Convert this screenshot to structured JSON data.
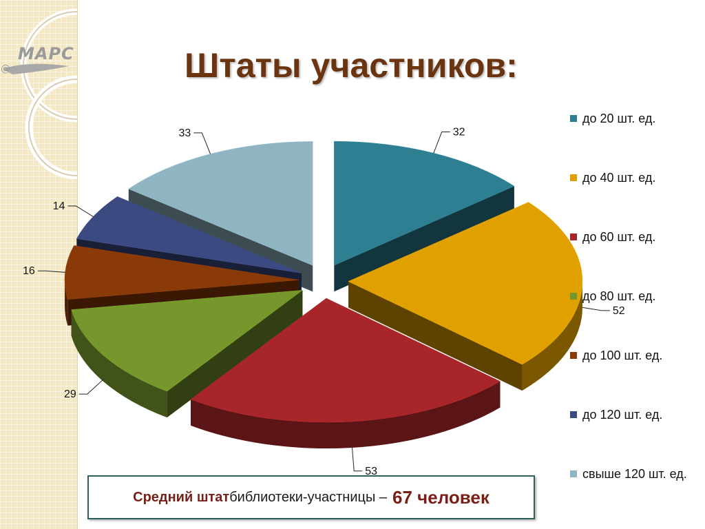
{
  "title": "Штаты участников:",
  "logo": {
    "text": "МАРС"
  },
  "note": {
    "part1": "Средний штат",
    "part2": " библиотеки-участницы – ",
    "part3": "67 человек"
  },
  "chart_data": {
    "type": "pie",
    "title": "",
    "categories": [
      "до 20 шт. ед.",
      "до 40 шт. ед.",
      "до 60 шт. ед.",
      "до 80 шт. ед.",
      "до 100 шт. ед.",
      "до 120 шт. ед.",
      "свыше 120 шт. ед."
    ],
    "values": [
      32,
      52,
      53,
      29,
      16,
      14,
      33
    ],
    "colors": [
      "#2e7f91",
      "#e0a000",
      "#a8262a",
      "#76972b",
      "#8a3a07",
      "#3b4a80",
      "#8fb4c2"
    ],
    "legend": "right",
    "exploded": true,
    "style": "3d"
  }
}
